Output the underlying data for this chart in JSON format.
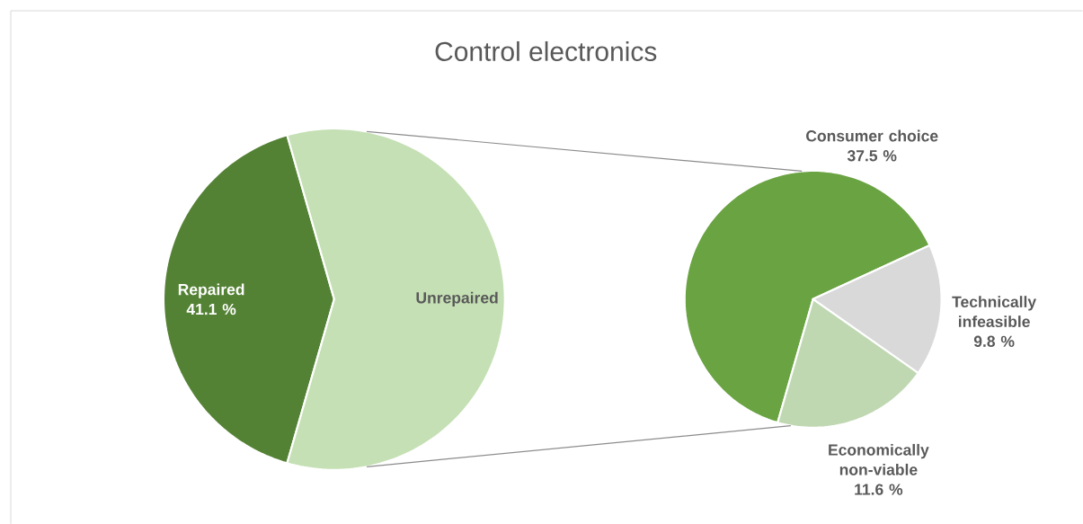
{
  "chart_data": [
    {
      "type": "pie",
      "title": "Control electronics",
      "categories": [
        "Repaired",
        "Unrepaired"
      ],
      "values": [
        41.1,
        58.9
      ],
      "colors": [
        "#548235",
        "#c5e0b4"
      ],
      "value_labels": [
        "41.1 %",
        null
      ]
    },
    {
      "type": "pie",
      "categories": [
        "Consumer choice",
        "Technically infeasible",
        "Economically non-viable"
      ],
      "values": [
        37.5,
        9.8,
        11.6
      ],
      "colors": [
        "#6aa342",
        "#d9d9d9",
        "#bfd8b2"
      ],
      "value_labels": [
        "37.5 %",
        "9.8 %",
        "11.6 %"
      ]
    }
  ]
}
